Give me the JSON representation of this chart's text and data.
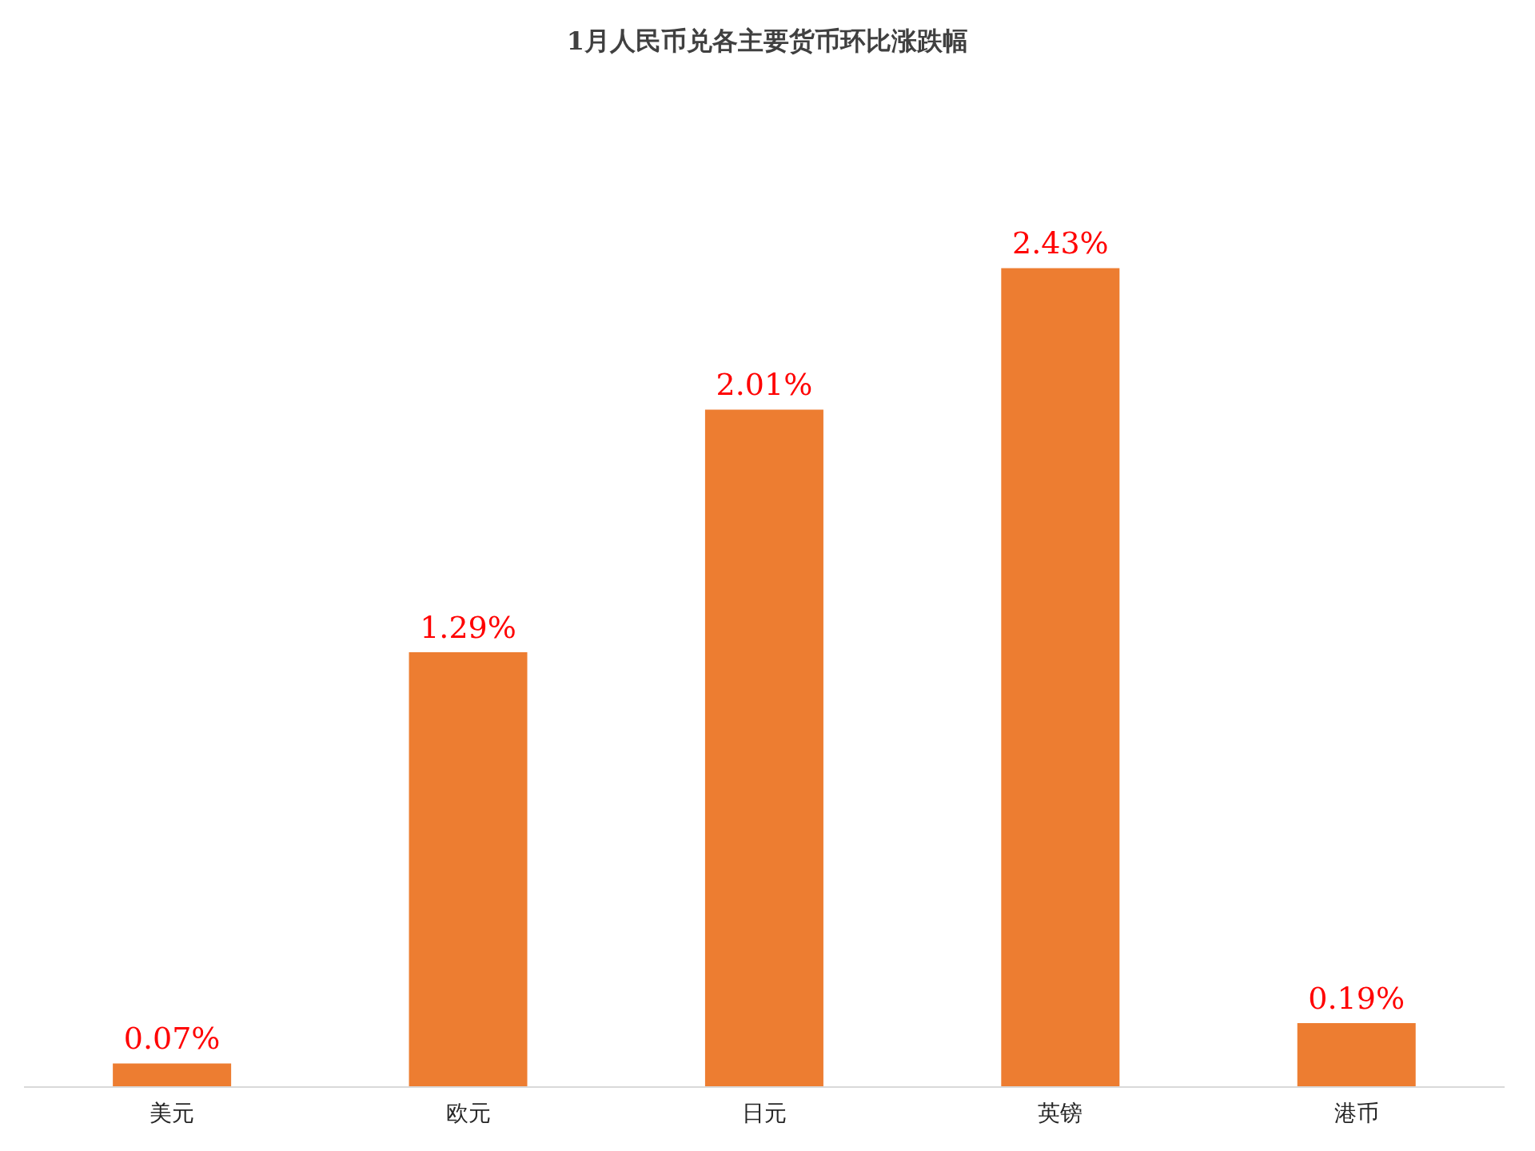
{
  "chart_data": {
    "type": "bar",
    "title": "1月人民币兑各主要货币环比涨跌幅",
    "categories": [
      "美元",
      "欧元",
      "日元",
      "英镑",
      "港币"
    ],
    "values": [
      0.07,
      1.29,
      2.01,
      2.43,
      0.19
    ],
    "value_labels": [
      "0.07%",
      "1.29%",
      "2.01%",
      "2.43%",
      "0.19%"
    ],
    "color": "#ed7d31",
    "grid": false,
    "legend": false
  }
}
